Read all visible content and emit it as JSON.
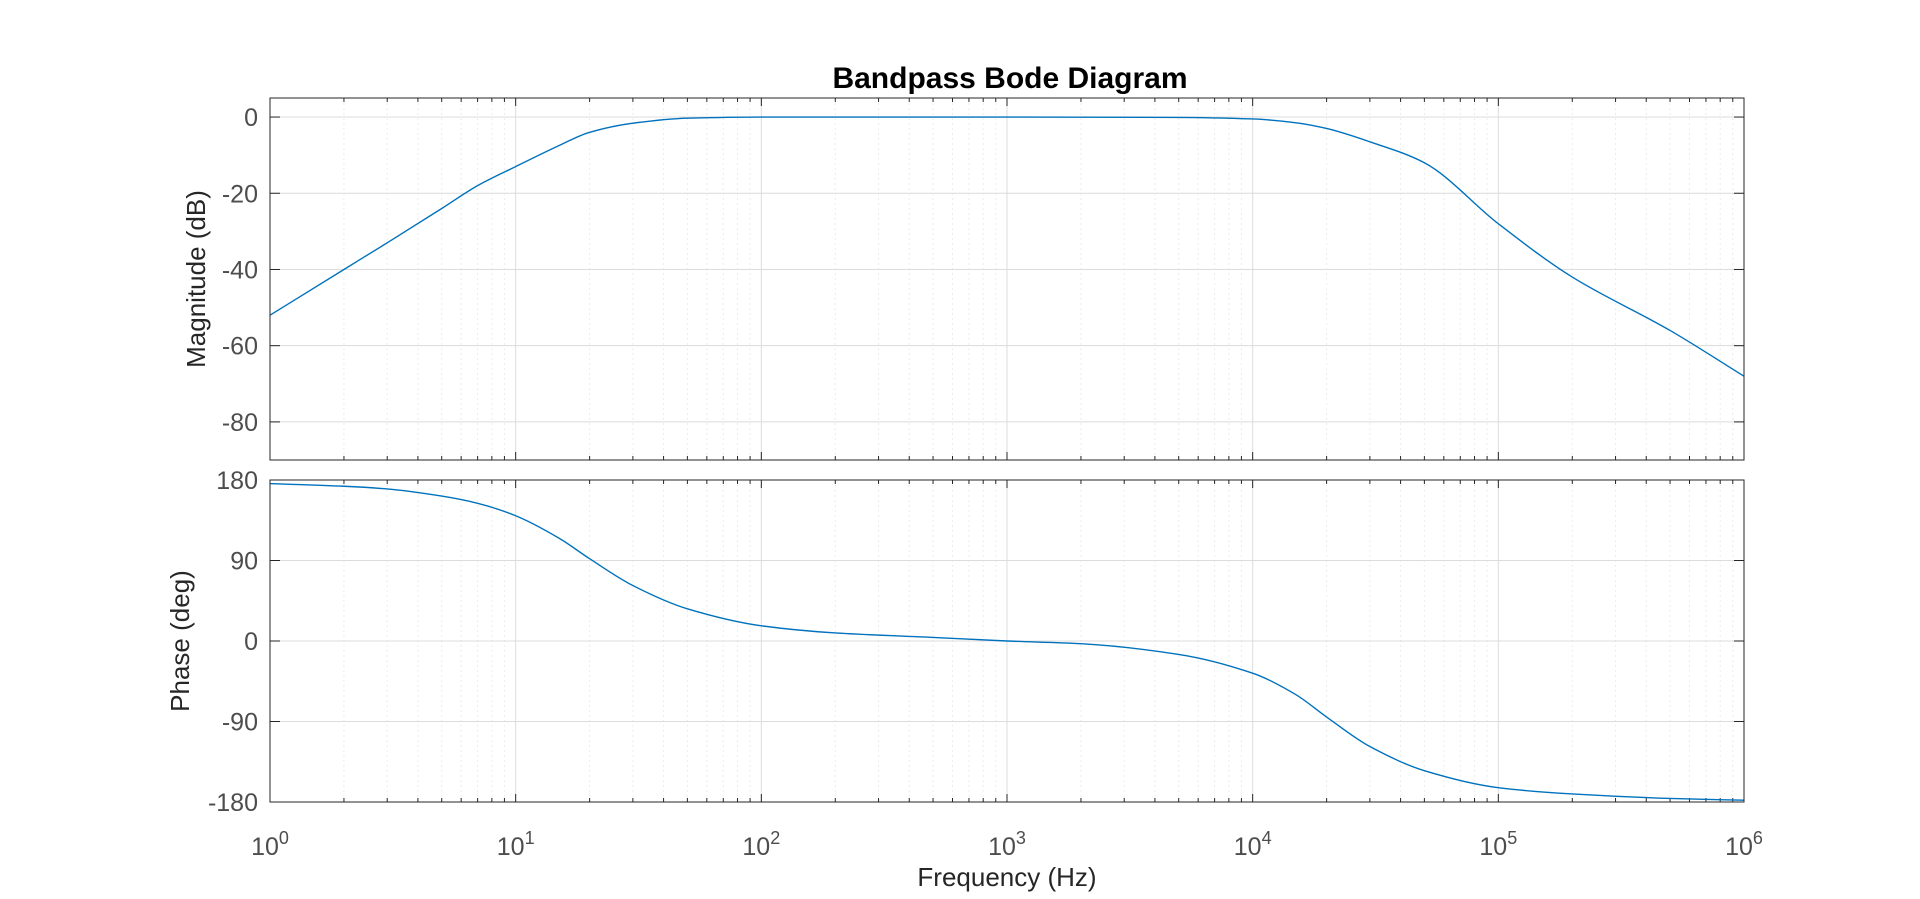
{
  "chart_data": {
    "type": "line",
    "title": "Bandpass Bode Diagram",
    "xlabel": "Frequency  (Hz)",
    "x_scale": "log",
    "xlim": [
      1,
      1000000
    ],
    "x_ticks": [
      {
        "base": "10",
        "exp": "0"
      },
      {
        "base": "10",
        "exp": "1"
      },
      {
        "base": "10",
        "exp": "2"
      },
      {
        "base": "10",
        "exp": "3"
      },
      {
        "base": "10",
        "exp": "4"
      },
      {
        "base": "10",
        "exp": "5"
      },
      {
        "base": "10",
        "exp": "6"
      }
    ],
    "grid": true,
    "line_color": "#0072BD",
    "panels": [
      {
        "name": "magnitude",
        "ylabel": "Magnitude (dB)",
        "ylim": [
          -90,
          5
        ],
        "y_ticks": [
          "0",
          "-20",
          "-40",
          "-60",
          "-80"
        ],
        "x": [
          1,
          2,
          3,
          5,
          7,
          10,
          15,
          20,
          30,
          50,
          100,
          1000,
          5000,
          10000,
          15000,
          20000,
          30000,
          50000,
          100000,
          200000,
          500000,
          1000000
        ],
        "y": [
          -52,
          -40,
          -33,
          -24,
          -18,
          -13,
          -7.5,
          -4,
          -1.6,
          -0.3,
          0,
          0,
          -0.1,
          -0.5,
          -1.5,
          -3,
          -6.5,
          -12,
          -28,
          -42,
          -56,
          -68
        ]
      },
      {
        "name": "phase",
        "ylabel": "Phase (deg)",
        "ylim": [
          -180,
          180
        ],
        "y_ticks": [
          "180",
          "90",
          "0",
          "-90",
          "-180"
        ],
        "x": [
          1,
          2,
          3,
          5,
          7,
          10,
          15,
          20,
          30,
          50,
          100,
          200,
          500,
          1000,
          2000,
          5000,
          10000,
          15000,
          20000,
          30000,
          50000,
          100000,
          200000,
          500000,
          1000000
        ],
        "y": [
          176,
          173,
          170,
          162,
          154,
          140,
          115,
          92,
          62,
          36,
          17,
          9,
          4,
          0,
          -3,
          -15,
          -36,
          -60,
          -85,
          -118,
          -145,
          -164,
          -171,
          -176,
          -178
        ]
      }
    ]
  }
}
